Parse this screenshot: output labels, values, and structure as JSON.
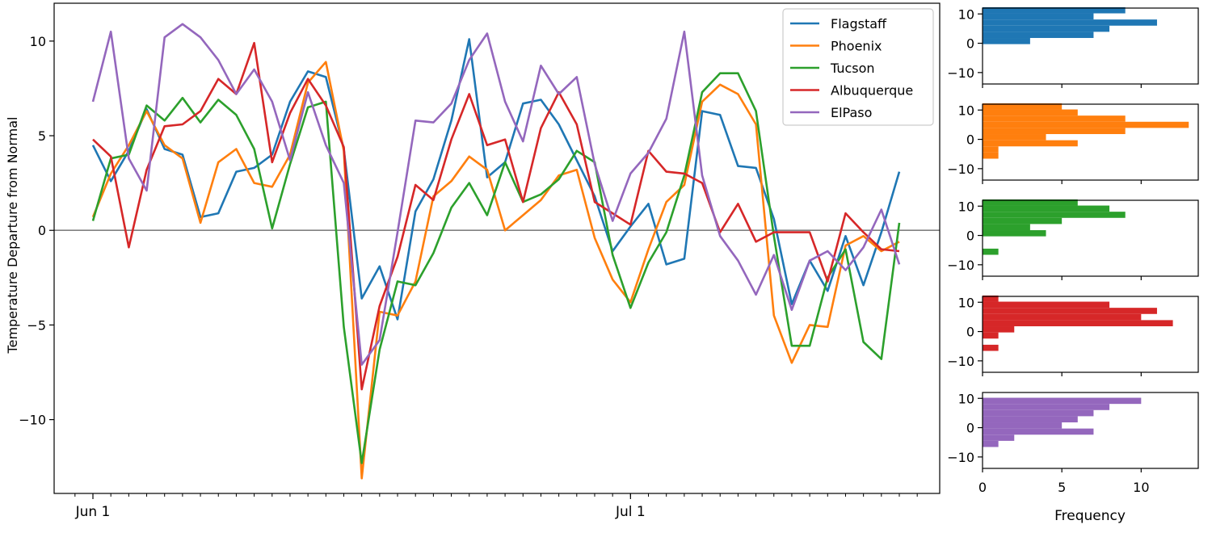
{
  "chart_data": {
    "type": "line",
    "title": "",
    "xlabel": "",
    "ylabel": "Temperature Departure from Normal",
    "x_tick_labels": [
      "Jun 1",
      "Jul 1"
    ],
    "x": [
      "Jun 1",
      "Jun 2",
      "Jun 3",
      "Jun 4",
      "Jun 5",
      "Jun 6",
      "Jun 7",
      "Jun 8",
      "Jun 9",
      "Jun 10",
      "Jun 11",
      "Jun 12",
      "Jun 13",
      "Jun 14",
      "Jun 15",
      "Jun 16",
      "Jun 17",
      "Jun 18",
      "Jun 19",
      "Jun 20",
      "Jun 21",
      "Jun 22",
      "Jun 23",
      "Jun 24",
      "Jun 25",
      "Jun 26",
      "Jun 27",
      "Jun 28",
      "Jun 29",
      "Jun 30",
      "Jul 1",
      "Jul 2",
      "Jul 3",
      "Jul 4",
      "Jul 5",
      "Jul 6",
      "Jul 7",
      "Jul 8",
      "Jul 9",
      "Jul 10",
      "Jul 11",
      "Jul 12",
      "Jul 13",
      "Jul 14",
      "Jul 15",
      "Jul 16"
    ],
    "ylim": [
      -13.9,
      12.0
    ],
    "y_ticks": [
      -10,
      -5,
      0,
      5,
      10
    ],
    "y_tick_labels": [
      "−10",
      "−5",
      "0",
      "5",
      "10"
    ],
    "zero_line": true,
    "grid": false,
    "legend_position": "top-right",
    "series": [
      {
        "name": "Flagstaff",
        "color": "#1f77b4",
        "values": [
          4.5,
          2.6,
          4.2,
          6.4,
          4.3,
          4.0,
          0.7,
          0.9,
          3.1,
          3.3,
          4.0,
          6.8,
          8.4,
          8.1,
          4.3,
          -3.6,
          -1.9,
          -4.7,
          1.0,
          2.7,
          5.8,
          10.1,
          2.8,
          3.6,
          6.7,
          6.9,
          5.6,
          3.7,
          1.8,
          -1.1,
          0.2,
          1.4,
          -1.8,
          -1.5,
          6.3,
          6.1,
          3.4,
          3.3,
          0.6,
          -3.9,
          -1.6,
          -3.2,
          -0.3,
          -2.9,
          -0.1,
          3.1
        ]
      },
      {
        "name": "Phoenix",
        "color": "#ff7f0e",
        "values": [
          0.7,
          3.0,
          4.5,
          6.3,
          4.5,
          3.8,
          0.4,
          3.6,
          4.3,
          2.5,
          2.3,
          4.0,
          7.8,
          8.9,
          4.2,
          -13.1,
          -4.3,
          -4.5,
          -2.7,
          1.8,
          2.6,
          3.9,
          3.2,
          0.0,
          0.8,
          1.6,
          2.9,
          3.2,
          -0.4,
          -2.6,
          -3.8,
          -1.0,
          1.5,
          2.4,
          6.8,
          7.7,
          7.2,
          5.6,
          -4.5,
          -7.0,
          -5.0,
          -5.1,
          -0.8,
          -0.3,
          -1.1,
          -0.6
        ]
      },
      {
        "name": "Tucson",
        "color": "#2ca02c",
        "values": [
          0.5,
          3.8,
          4.0,
          6.6,
          5.8,
          7.0,
          5.7,
          6.9,
          6.1,
          4.3,
          0.1,
          3.5,
          6.5,
          6.8,
          -5.1,
          -12.3,
          -6.3,
          -2.7,
          -2.9,
          -1.2,
          1.2,
          2.5,
          0.8,
          3.6,
          1.5,
          1.9,
          2.7,
          4.2,
          3.6,
          -1.3,
          -4.1,
          -1.7,
          -0.1,
          2.9,
          7.3,
          8.3,
          8.3,
          6.3,
          -0.3,
          -6.1,
          -6.1,
          -2.5,
          -1.0,
          -5.9,
          -6.8,
          0.4
        ]
      },
      {
        "name": "Albuquerque",
        "color": "#d62728",
        "values": [
          4.8,
          3.9,
          -0.9,
          3.2,
          5.5,
          5.6,
          6.3,
          8.0,
          7.2,
          9.9,
          3.6,
          6.2,
          8.0,
          6.6,
          4.4,
          -8.4,
          -4.0,
          -1.4,
          2.4,
          1.6,
          4.8,
          7.2,
          4.5,
          4.8,
          1.5,
          5.4,
          7.3,
          5.6,
          1.5,
          0.9,
          0.3,
          4.2,
          3.1,
          3.0,
          2.5,
          -0.1,
          1.4,
          -0.6,
          -0.1,
          -0.1,
          -0.1,
          -2.7,
          0.9,
          -0.1,
          -1.0,
          -1.1
        ]
      },
      {
        "name": "ElPaso",
        "color": "#9467bd",
        "values": [
          6.8,
          10.5,
          3.8,
          2.1,
          10.2,
          10.9,
          10.2,
          9.0,
          7.2,
          8.5,
          6.8,
          3.7,
          7.3,
          4.5,
          2.5,
          -7.1,
          -5.8,
          -0.1,
          5.8,
          5.7,
          6.7,
          9.0,
          10.4,
          6.8,
          4.7,
          8.7,
          7.2,
          8.1,
          3.5,
          0.5,
          3.0,
          4.1,
          5.9,
          10.5,
          2.9,
          -0.3,
          -1.6,
          -3.4,
          -1.3,
          -4.2,
          -1.6,
          -1.1,
          -2.1,
          -0.9,
          1.1,
          -1.8
        ]
      }
    ],
    "histograms": {
      "xlabel": "Frequency",
      "x_ticks": [
        0,
        5,
        10
      ],
      "xlim": [
        0,
        13.6
      ],
      "y_ticks": [
        -10,
        0,
        10
      ],
      "y_tick_labels": [
        "−10",
        "0",
        "10"
      ],
      "ylim": [
        -13.9,
        12.0
      ],
      "bins_low": [
        -8.7,
        -6.6,
        -4.5,
        -2.4,
        -0.3,
        1.8,
        3.9,
        6.0,
        8.1,
        10.2
      ],
      "bin_width": 2.1,
      "counts": [
        [
          0,
          0,
          0,
          0,
          3,
          7,
          8,
          11,
          7,
          9
        ],
        [
          0,
          1,
          1,
          6,
          4,
          9,
          13,
          9,
          6,
          5
        ],
        [
          0,
          1,
          0,
          0,
          4,
          3,
          5,
          9,
          8,
          6
        ],
        [
          0,
          1,
          0,
          1,
          2,
          12,
          10,
          11,
          8,
          1
        ],
        [
          0,
          1,
          2,
          7,
          5,
          6,
          7,
          8,
          10,
          0
        ]
      ]
    }
  }
}
